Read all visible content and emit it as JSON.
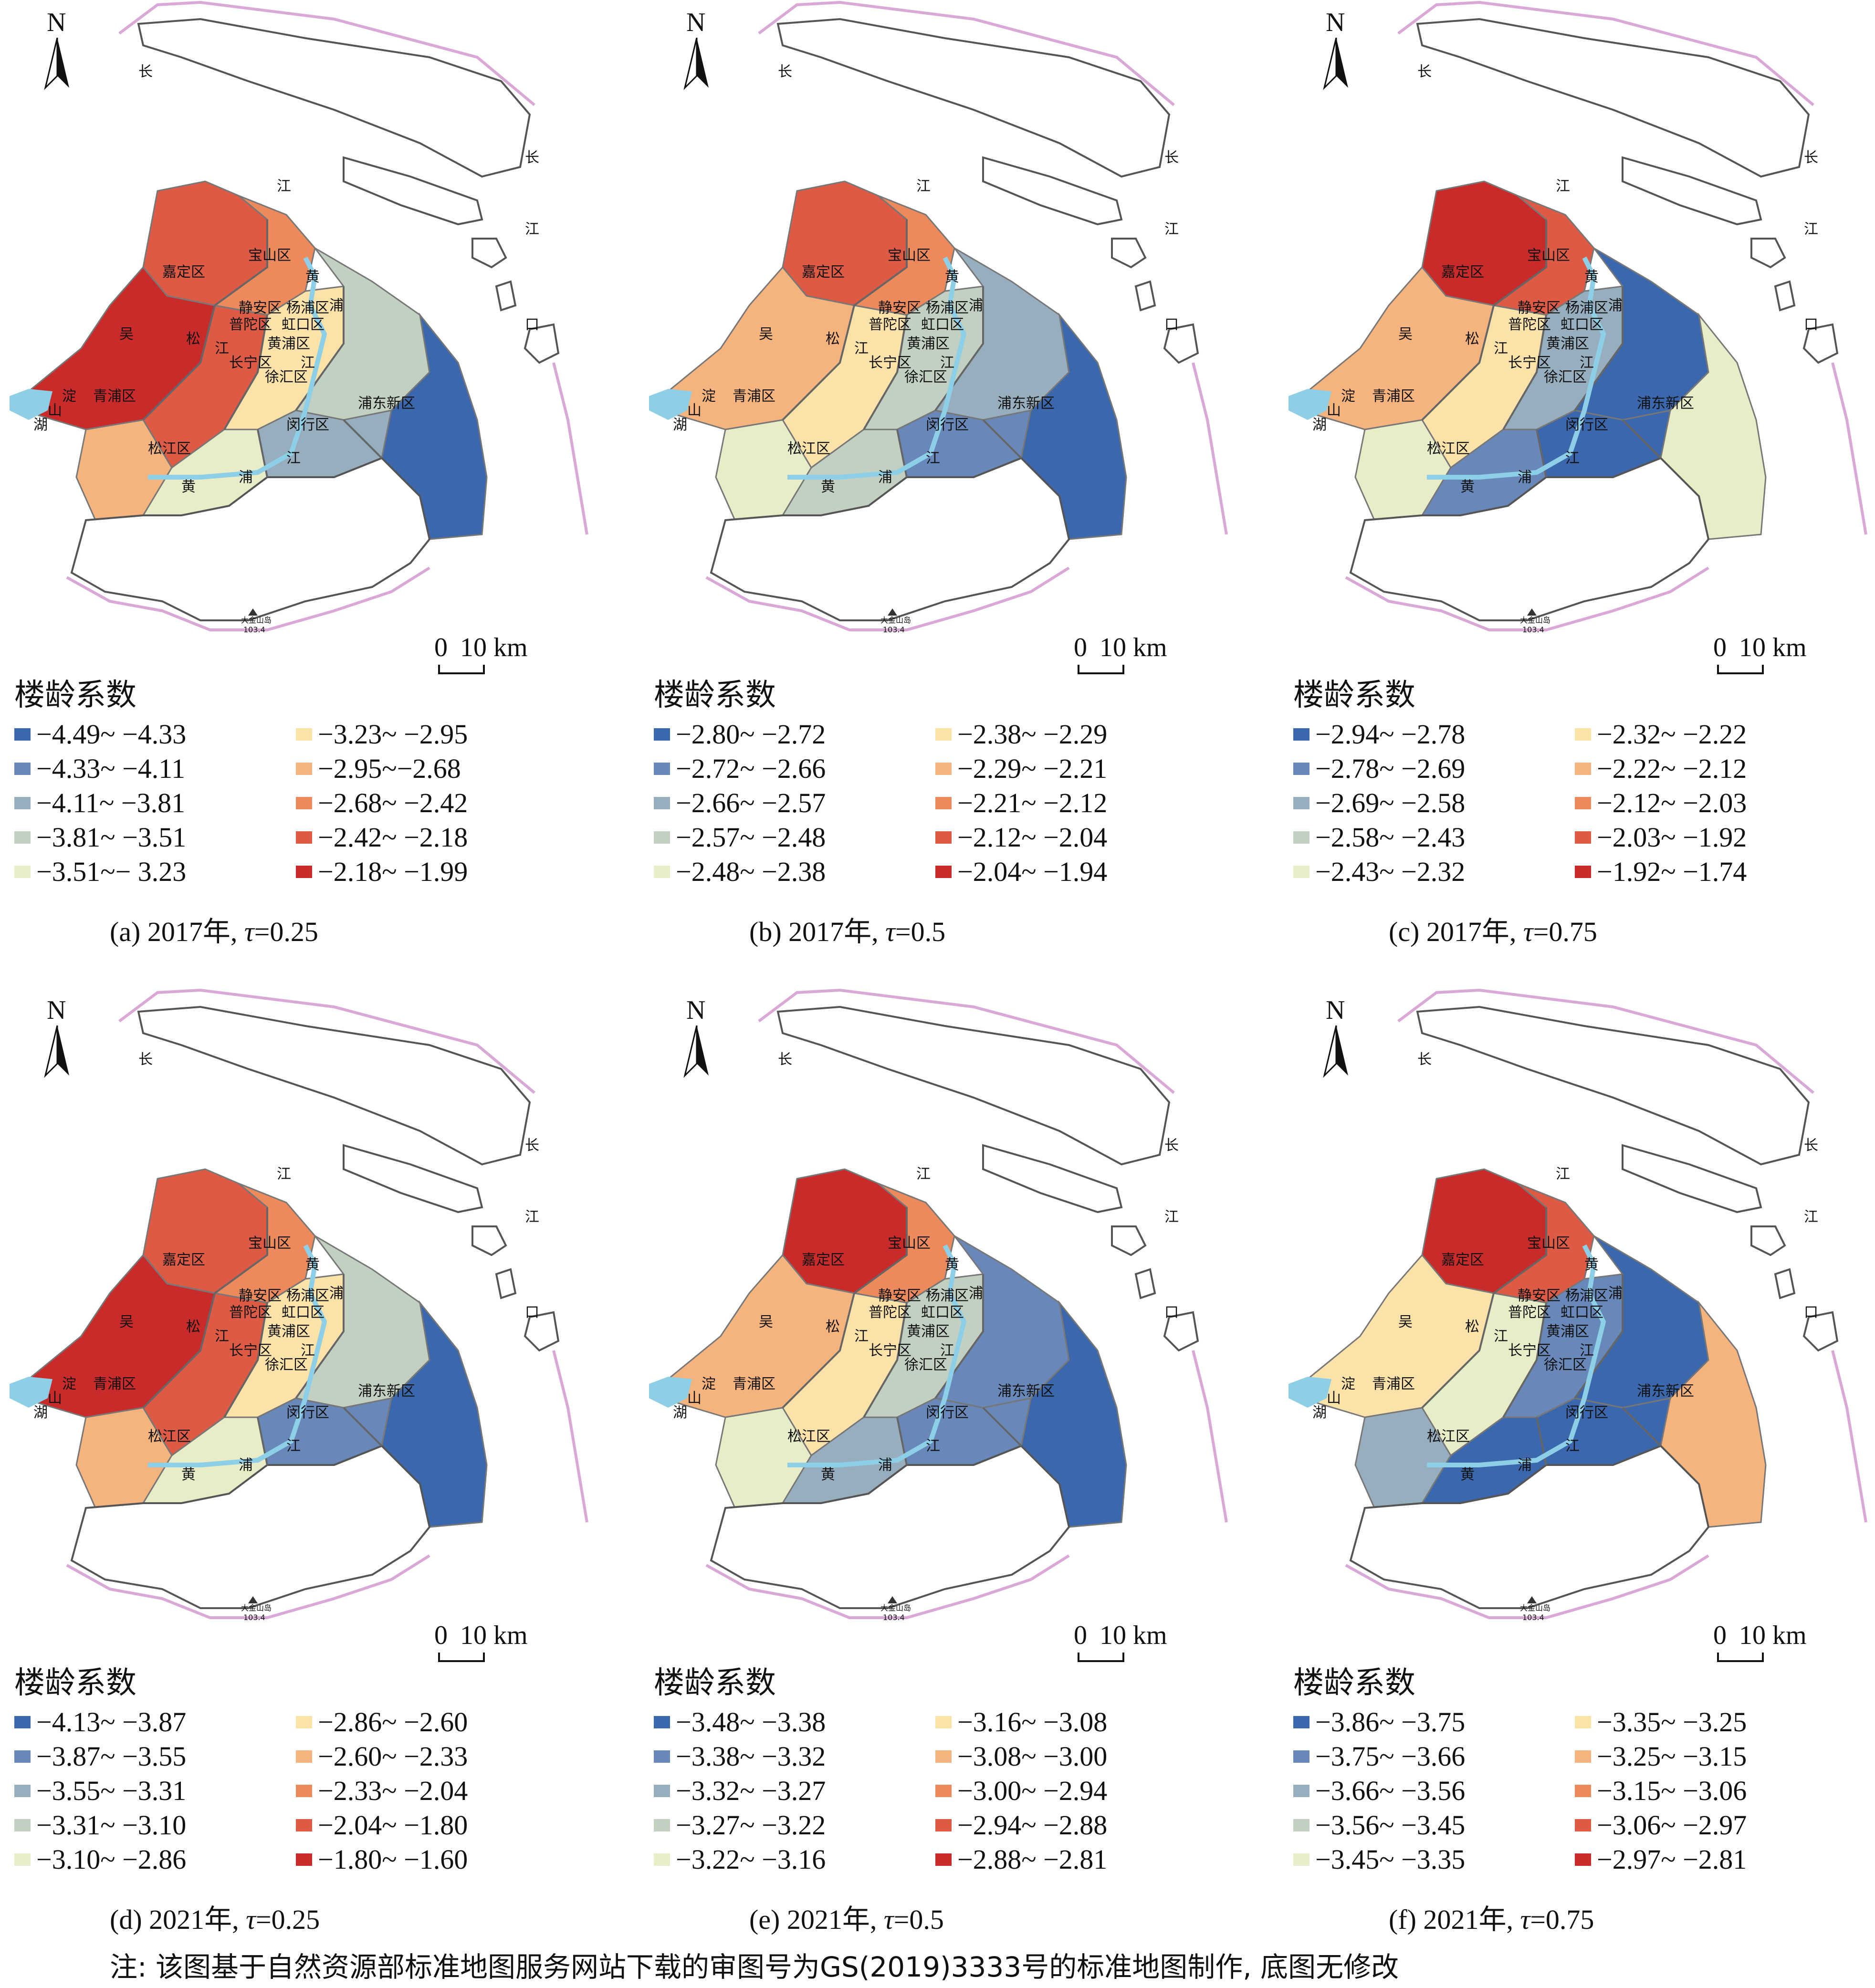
{
  "legend_title": "楼龄系数",
  "north_label": "N",
  "scale_label_zero": "0",
  "scale_label_dist": "10 km",
  "map_labels": {
    "jiading": "嘉定区",
    "baoshan": "宝山区",
    "jingan": "静安区",
    "yangpu": "杨浦区",
    "putuo": "普陀区",
    "hongkou": "虹口区",
    "huangpu": "黄浦区",
    "changning": "长宁区",
    "xuhui": "徐汇区",
    "minhang": "闵行区",
    "qingpu": "青浦区",
    "songjiang": "松江区",
    "pudong": "浦东新区",
    "dian": "淀",
    "shan": "山",
    "hu": "湖",
    "wu": "吴",
    "song": "松",
    "jiang": "江",
    "chang": "长",
    "huang": "黄",
    "pu": "浦",
    "kou": "口",
    "peak_name": "大金山岛",
    "peak_value": "103.4"
  },
  "colors": {
    "c1": "#3b67ad",
    "c2": "#6788b9",
    "c3": "#97aebf",
    "c4": "#c2d0c2",
    "c5": "#e8ecc7",
    "c6": "#fbe2a8",
    "c7": "#f5b37d",
    "c8": "#ec8a5c",
    "c9": "#dd5a44",
    "c10": "#c92a2a",
    "river": "#8ecfe8",
    "coast": "#d9a8d6",
    "boundary": "#666666"
  },
  "panels": [
    {
      "caption_prefix": "(a) 2017年, ",
      "tau_symbol": "τ",
      "tau_value": "=0.25",
      "legend": [
        "−4.49~ −4.33",
        "−4.33~ −4.11",
        "−4.11~ −3.81",
        "−3.81~ −3.51",
        "−3.51~− 3.23",
        "−3.23~ −2.95",
        "−2.95~−2.68",
        "−2.68~ −2.42",
        "−2.42~ −2.18",
        "−2.18~ −1.99"
      ]
    },
    {
      "caption_prefix": "(b) 2017年, ",
      "tau_symbol": "τ",
      "tau_value": "=0.5",
      "legend": [
        "−2.80~ −2.72",
        "−2.72~ −2.66",
        "−2.66~ −2.57",
        "−2.57~ −2.48",
        "−2.48~ −2.38",
        "−2.38~ −2.29",
        "−2.29~ −2.21",
        "−2.21~ −2.12",
        "−2.12~ −2.04",
        "−2.04~ −1.94"
      ]
    },
    {
      "caption_prefix": "(c) 2017年, ",
      "tau_symbol": "τ",
      "tau_value": "=0.75",
      "legend": [
        "−2.94~ −2.78",
        "−2.78~ −2.69",
        "−2.69~ −2.58",
        "−2.58~ −2.43",
        "−2.43~ −2.32",
        "−2.32~ −2.22",
        "−2.22~ −2.12",
        "−2.12~ −2.03",
        "−2.03~ −1.92",
        "−1.92~ −1.74"
      ]
    },
    {
      "caption_prefix": "(d) 2021年, ",
      "tau_symbol": "τ",
      "tau_value": "=0.25",
      "legend": [
        "−4.13~ −3.87",
        "−3.87~ −3.55",
        "−3.55~ −3.31",
        "−3.31~ −3.10",
        "−3.10~ −2.86",
        "−2.86~ −2.60",
        "−2.60~ −2.33",
        "−2.33~ −2.04",
        "−2.04~ −1.80",
        "−1.80~ −1.60"
      ]
    },
    {
      "caption_prefix": "(e) 2021年, ",
      "tau_symbol": "τ",
      "tau_value": "=0.5",
      "legend": [
        "−3.48~ −3.38",
        "−3.38~ −3.32",
        "−3.32~ −3.27",
        "−3.27~ −3.22",
        "−3.22~ −3.16",
        "−3.16~ −3.08",
        "−3.08~ −3.00",
        "−3.00~ −2.94",
        "−2.94~ −2.88",
        "−2.88~ −2.81"
      ]
    },
    {
      "caption_prefix": "(f) 2021年, ",
      "tau_symbol": "τ",
      "tau_value": "=0.75",
      "legend": [
        "−3.86~ −3.75",
        "−3.75~ −3.66",
        "−3.66~ −3.56",
        "−3.56~ −3.45",
        "−3.45~ −3.35",
        "−3.35~ −3.25",
        "−3.25~ −3.15",
        "−3.15~ −3.06",
        "−3.06~ −2.97",
        "−2.97~ −2.81"
      ]
    }
  ],
  "map_pattern": {
    "a": [
      "c9",
      "c8",
      "c10",
      "c9",
      "c7",
      "c6",
      "c5",
      "c4",
      "c3",
      "c1"
    ],
    "b": [
      "c9",
      "c8",
      "c7",
      "c6",
      "c5",
      "c4",
      "c4",
      "c3",
      "c2",
      "c1"
    ],
    "c": [
      "c10",
      "c9",
      "c7",
      "c6",
      "c5",
      "c3",
      "c2",
      "c1",
      "c1",
      "c5"
    ],
    "d": [
      "c9",
      "c8",
      "c10",
      "c9",
      "c7",
      "c6",
      "c5",
      "c4",
      "c2",
      "c1"
    ],
    "e": [
      "c10",
      "c8",
      "c7",
      "c6",
      "c5",
      "c4",
      "c3",
      "c2",
      "c2",
      "c1"
    ],
    "f": [
      "c10",
      "c9",
      "c6",
      "c5",
      "c3",
      "c2",
      "c1",
      "c1",
      "c1",
      "c7"
    ]
  },
  "footnote": "注: 该图基于自然资源部标准地图服务网站下载的审图号为GS(2019)3333号的标准地图制作, 底图无修改"
}
